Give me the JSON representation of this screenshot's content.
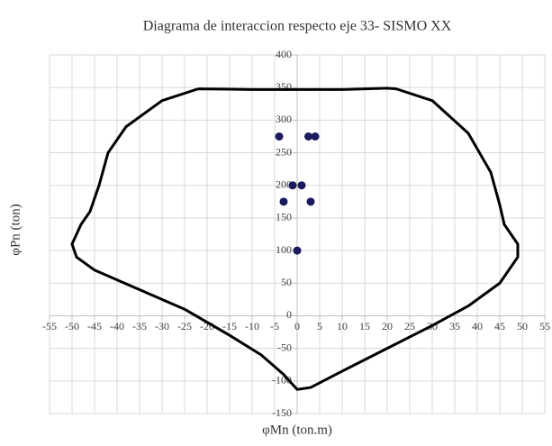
{
  "chart_data": {
    "type": "scatter",
    "title": "Diagrama de interaccion respecto eje 33- SISMO XX",
    "xlabel": "φMn (ton.m)",
    "ylabel": "φPn (ton)",
    "xlim": [
      -55,
      55
    ],
    "ylim": [
      -150,
      400
    ],
    "xticks": [
      -55,
      -50,
      -45,
      -40,
      -35,
      -30,
      -25,
      -20,
      -15,
      -10,
      -5,
      0,
      5,
      10,
      15,
      20,
      25,
      30,
      35,
      40,
      45,
      50,
      55
    ],
    "yticks": [
      -150,
      -100,
      -50,
      0,
      50,
      100,
      150,
      200,
      250,
      300,
      350,
      400
    ],
    "grid": true,
    "series": [
      {
        "type": "line",
        "color": "#000000",
        "x": [
          -22,
          -30,
          -38,
          -42,
          -44,
          -46,
          -48,
          -50,
          -49,
          -45,
          -35,
          -25,
          -15,
          -8,
          -3,
          0,
          3,
          10,
          20,
          30,
          38,
          45,
          49,
          49,
          46,
          45,
          43,
          38,
          30,
          22,
          20,
          10,
          -10,
          -22
        ],
        "values": [
          348,
          330,
          290,
          250,
          200,
          160,
          140,
          110,
          90,
          70,
          40,
          10,
          -30,
          -60,
          -90,
          -113,
          -110,
          -85,
          -50,
          -15,
          15,
          50,
          90,
          110,
          140,
          170,
          220,
          280,
          330,
          348,
          349,
          347,
          347,
          348
        ]
      },
      {
        "type": "scatter",
        "color": "#1a1a5e",
        "x": [
          -4,
          2.5,
          4,
          -1,
          1,
          -3,
          3,
          0
        ],
        "values": [
          275,
          275,
          275,
          200,
          200,
          175,
          175,
          100
        ]
      }
    ]
  }
}
